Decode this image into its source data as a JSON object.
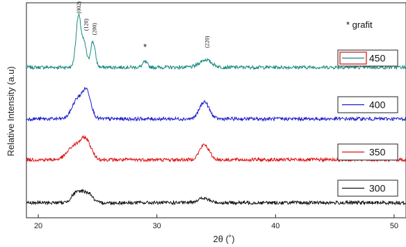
{
  "chart_data": {
    "type": "line",
    "title": "",
    "xlabel": "2θ (˚)",
    "ylabel": "Relative Intensity (a.u)",
    "xlim": [
      19,
      51
    ],
    "ylim": [
      0,
      100
    ],
    "xticks": [
      20,
      30,
      40,
      50
    ],
    "xtick_labels": [
      "20",
      "30",
      "40",
      "50"
    ],
    "grid": false,
    "legend_position": "right",
    "note": "* grafit",
    "series": [
      {
        "name": "450",
        "color": "#1a8a80",
        "baseline": 70,
        "peaks": [
          [
            23.4,
            24,
            0.22
          ],
          [
            23.9,
            10,
            0.18
          ],
          [
            24.6,
            12,
            0.2
          ],
          [
            29.0,
            2.5,
            0.2
          ],
          [
            34.1,
            3.5,
            0.5
          ]
        ]
      },
      {
        "name": "400",
        "color": "#1a1acc",
        "baseline": 46,
        "peaks": [
          [
            23.3,
            9,
            0.45
          ],
          [
            24.1,
            12,
            0.35
          ],
          [
            34.0,
            8,
            0.4
          ]
        ]
      },
      {
        "name": "350",
        "color": "#dd1111",
        "baseline": 27,
        "peaks": [
          [
            23.0,
            6,
            0.55
          ],
          [
            24.0,
            9,
            0.45
          ],
          [
            34.0,
            7,
            0.4
          ]
        ]
      },
      {
        "name": "300",
        "color": "#111111",
        "baseline": 7,
        "peaks": [
          [
            23.1,
            4,
            0.35
          ],
          [
            23.7,
            4,
            0.3
          ],
          [
            24.3,
            4,
            0.3
          ],
          [
            33.9,
            2,
            0.5
          ]
        ]
      }
    ],
    "peak_labels": [
      {
        "text": "(002)",
        "x": 23.4,
        "y": 95
      },
      {
        "text": "(120)",
        "x": 24.0,
        "y": 87
      },
      {
        "text": "(200)",
        "x": 24.7,
        "y": 85
      },
      {
        "text": "*",
        "x": 29.0,
        "y": 78
      },
      {
        "text": "(220)",
        "x": 34.2,
        "y": 79
      }
    ]
  }
}
